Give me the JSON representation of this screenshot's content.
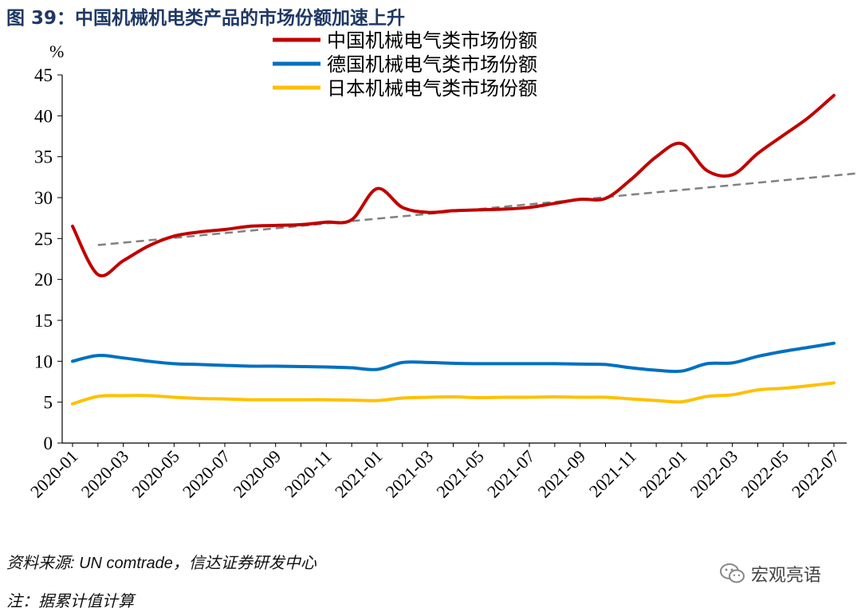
{
  "figure_title": "图 39：中国机械机电类产品的市场份额加速上升",
  "source_note": "资料来源: UN comtrade，信达证券研发中心",
  "calc_note": "注：据累计值计算",
  "watermark": {
    "text": "宏观亮语",
    "icon": "wechat-icon"
  },
  "chart_data": {
    "type": "line",
    "ylabel": "%",
    "ylim": [
      0,
      45
    ],
    "yticks": [
      0,
      5,
      10,
      15,
      20,
      25,
      30,
      35,
      40,
      45
    ],
    "x": [
      "2020-01",
      "2020-02",
      "2020-03",
      "2020-04",
      "2020-05",
      "2020-06",
      "2020-07",
      "2020-08",
      "2020-09",
      "2020-10",
      "2020-11",
      "2020-12",
      "2021-01",
      "2021-02",
      "2021-03",
      "2021-04",
      "2021-05",
      "2021-06",
      "2021-07",
      "2021-08",
      "2021-09",
      "2021-10",
      "2021-11",
      "2021-12",
      "2022-01",
      "2022-02",
      "2022-03",
      "2022-04",
      "2022-05",
      "2022-06",
      "2022-07"
    ],
    "x_tick_labels": [
      "2020-01",
      "2020-03",
      "2020-05",
      "2020-07",
      "2020-09",
      "2020-11",
      "2021-01",
      "2021-03",
      "2021-05",
      "2021-07",
      "2021-09",
      "2021-11",
      "2022-01",
      "2022-03",
      "2022-05",
      "2022-07"
    ],
    "legend_position": "top",
    "grid": false,
    "series": [
      {
        "name": "中国机械电气类市场份额",
        "color": "#c00000",
        "values": [
          26.5,
          20.6,
          22.3,
          24.1,
          25.3,
          25.8,
          26.1,
          26.5,
          26.6,
          26.7,
          27.0,
          27.3,
          31.1,
          28.8,
          28.2,
          28.4,
          28.5,
          28.6,
          28.8,
          29.3,
          29.8,
          29.9,
          32.2,
          35.0,
          36.6,
          33.3,
          32.8,
          35.4,
          37.6,
          39.8,
          42.5
        ]
      },
      {
        "name": "德国机械电气类市场份额",
        "color": "#0070c0",
        "values": [
          10.0,
          10.7,
          10.4,
          10.0,
          9.7,
          9.6,
          9.5,
          9.4,
          9.4,
          9.35,
          9.3,
          9.2,
          9.0,
          9.85,
          9.85,
          9.75,
          9.7,
          9.7,
          9.7,
          9.7,
          9.65,
          9.6,
          9.2,
          8.9,
          8.8,
          9.7,
          9.8,
          10.6,
          11.2,
          11.7,
          12.2
        ]
      },
      {
        "name": "日本机械电气类市场份额",
        "color": "#ffc000",
        "values": [
          4.8,
          5.7,
          5.8,
          5.8,
          5.6,
          5.45,
          5.4,
          5.3,
          5.3,
          5.3,
          5.3,
          5.25,
          5.2,
          5.5,
          5.6,
          5.65,
          5.55,
          5.6,
          5.6,
          5.65,
          5.6,
          5.6,
          5.4,
          5.2,
          5.05,
          5.7,
          5.9,
          6.5,
          6.7,
          7.0,
          7.35
        ]
      }
    ],
    "trend_line": {
      "style": "dashed",
      "color": "#808080",
      "start": [
        "2020-02",
        24.2
      ],
      "end": [
        "2022-07",
        32.7
      ]
    }
  }
}
